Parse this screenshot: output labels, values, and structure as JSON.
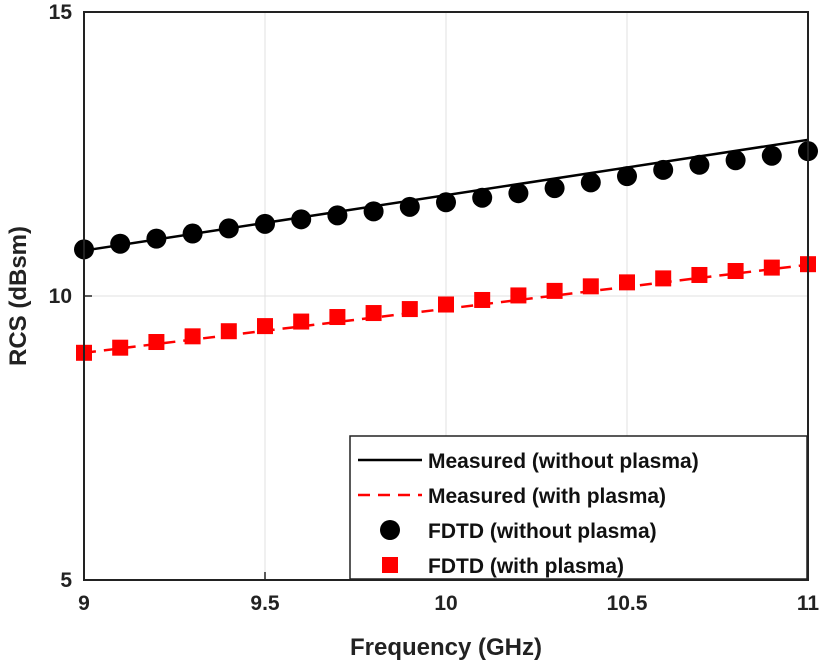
{
  "chart_data": {
    "type": "line",
    "xlabel": "Frequency (GHz)",
    "ylabel": "RCS (dBsm)",
    "xlim": [
      9,
      11
    ],
    "ylim": [
      5,
      15
    ],
    "xticks": [
      9,
      9.5,
      10,
      10.5,
      11
    ],
    "xtick_labels": [
      "9",
      "9.5",
      "10",
      "10.5",
      "11"
    ],
    "yticks": [
      5,
      10,
      15
    ],
    "ytick_labels": [
      "5",
      "10",
      "15"
    ],
    "grid": true,
    "legend_position": "bottom-right",
    "series": [
      {
        "name": "Measured (without plasma)",
        "style": "solid-line",
        "color": "#000000",
        "x": [
          9,
          11
        ],
        "y": [
          10.8,
          12.75
        ]
      },
      {
        "name": "Measured (with plasma)",
        "style": "dashed-line",
        "color": "#ff0000",
        "x": [
          9,
          11
        ],
        "y": [
          9.0,
          10.55
        ]
      },
      {
        "name": "FDTD (without plasma)",
        "style": "circle-marker",
        "color": "#000000",
        "x": [
          9.0,
          9.1,
          9.2,
          9.3,
          9.4,
          9.5,
          9.6,
          9.7,
          9.8,
          9.9,
          10.0,
          10.1,
          10.2,
          10.3,
          10.4,
          10.5,
          10.6,
          10.7,
          10.8,
          10.9,
          11.0
        ],
        "y": [
          10.82,
          10.92,
          11.01,
          11.1,
          11.19,
          11.27,
          11.35,
          11.42,
          11.49,
          11.57,
          11.65,
          11.73,
          11.81,
          11.9,
          12.0,
          12.11,
          12.22,
          12.31,
          12.39,
          12.47,
          12.55
        ]
      },
      {
        "name": "FDTD (with plasma)",
        "style": "square-marker",
        "color": "#ff0000",
        "x": [
          9.0,
          9.1,
          9.2,
          9.3,
          9.4,
          9.5,
          9.6,
          9.7,
          9.8,
          9.9,
          10.0,
          10.1,
          10.2,
          10.3,
          10.4,
          10.5,
          10.6,
          10.7,
          10.8,
          10.9,
          11.0
        ],
        "y": [
          9.0,
          9.09,
          9.19,
          9.29,
          9.38,
          9.47,
          9.55,
          9.63,
          9.7,
          9.77,
          9.85,
          9.93,
          10.01,
          10.09,
          10.17,
          10.24,
          10.31,
          10.37,
          10.44,
          10.5,
          10.56
        ]
      }
    ]
  }
}
